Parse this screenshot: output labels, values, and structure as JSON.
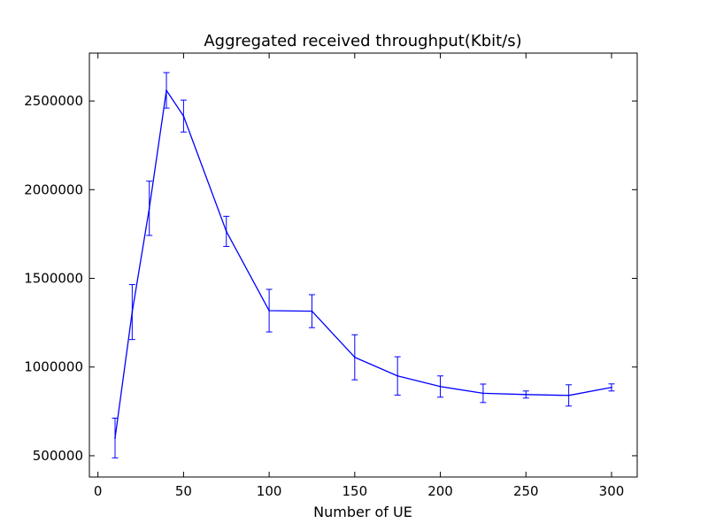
{
  "chart_data": {
    "type": "line",
    "title": "Aggregated received throughput(Kbit/s)",
    "xlabel": "Number of UE",
    "ylabel": "",
    "xlim": [
      -5,
      315
    ],
    "ylim": [
      380000,
      2770000
    ],
    "xticks": [
      0,
      50,
      100,
      150,
      200,
      250,
      300
    ],
    "xtick_labels": [
      "0",
      "50",
      "100",
      "150",
      "200",
      "250",
      "300"
    ],
    "yticks": [
      500000,
      1000000,
      1500000,
      2000000,
      2500000
    ],
    "ytick_labels": [
      "500000",
      "1000000",
      "1500000",
      "2000000",
      "2500000"
    ],
    "grid": false,
    "series": [
      {
        "color": "#0000ff",
        "x": [
          10,
          20,
          30,
          40,
          50,
          75,
          100,
          125,
          150,
          175,
          200,
          225,
          250,
          275,
          300
        ],
        "y": [
          600000,
          1310000,
          1895000,
          2560000,
          2415000,
          1765000,
          1318000,
          1315000,
          1055000,
          950000,
          890000,
          852000,
          845000,
          840000,
          885000
        ],
        "yerr": [
          112000,
          155000,
          153000,
          100000,
          90000,
          85000,
          120000,
          93000,
          127000,
          108000,
          60000,
          52000,
          20000,
          60000,
          20000
        ]
      }
    ]
  }
}
